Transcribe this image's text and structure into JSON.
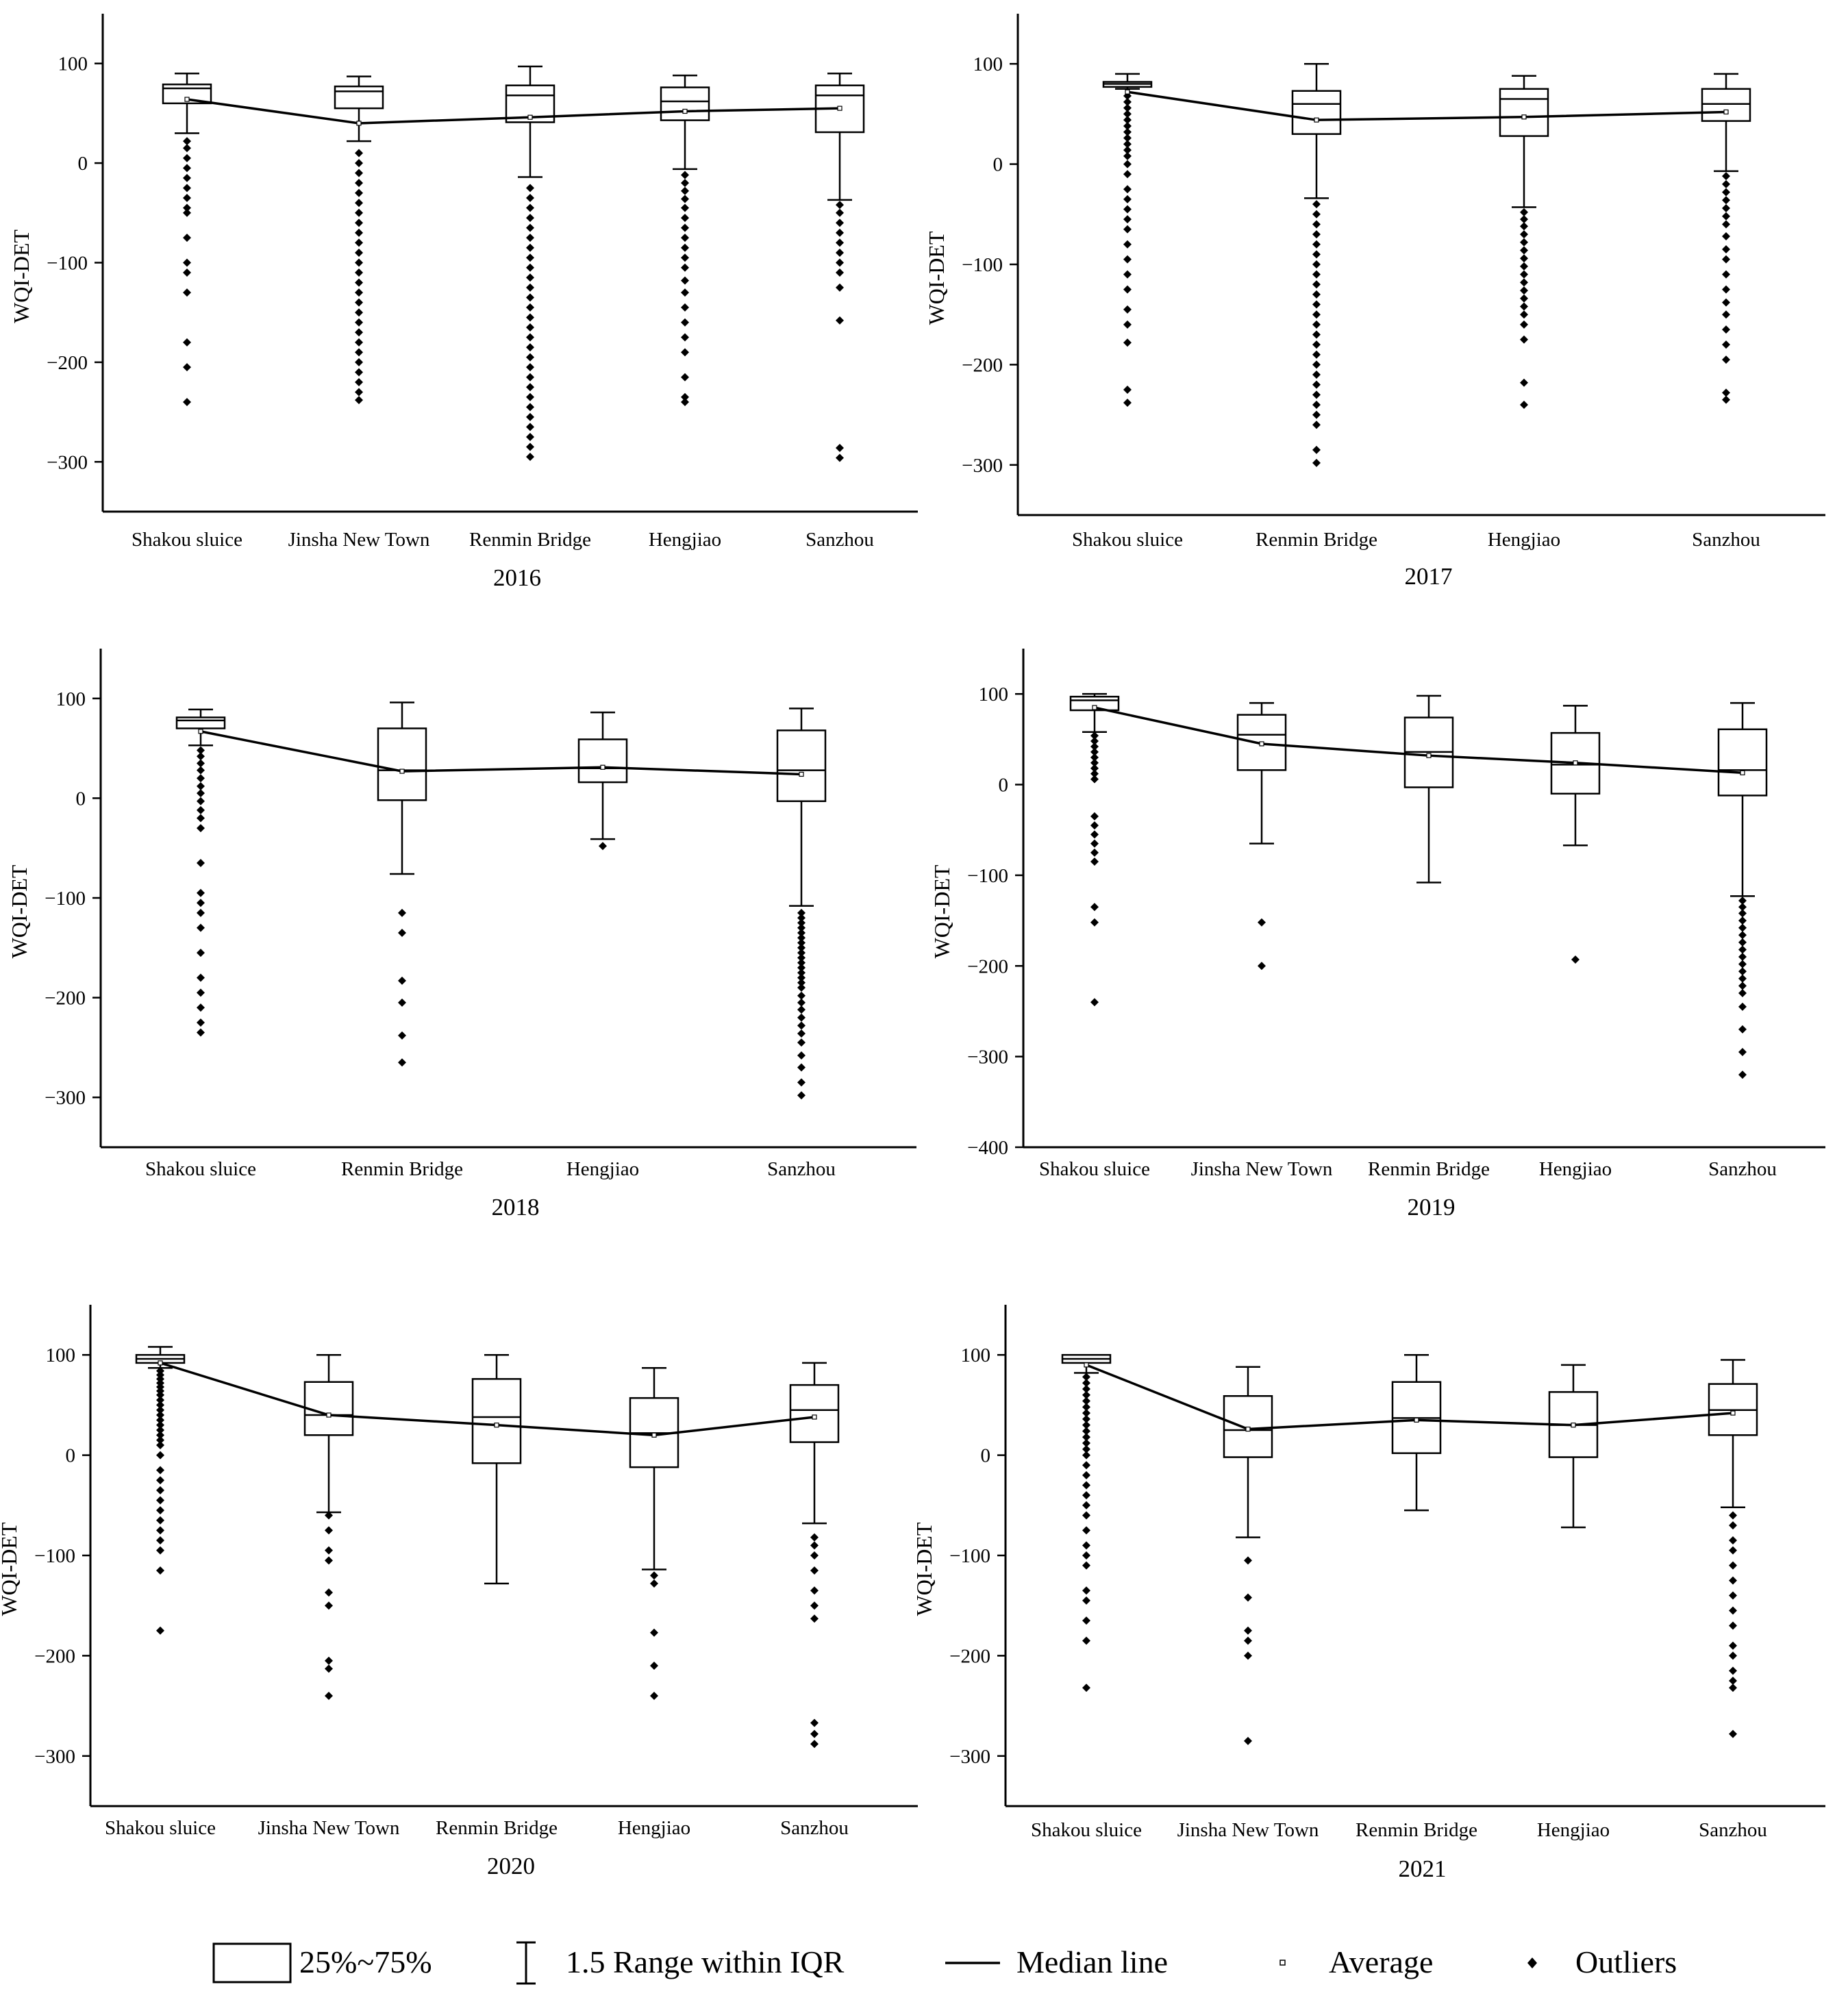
{
  "legend": {
    "box": "25%~75%",
    "whisker": "1.5 Range within IQR",
    "median": "Median line",
    "average": "Average",
    "outliers": "Outliers"
  },
  "chart_data": [
    {
      "type": "box",
      "title": "2016",
      "ylabel": "WQI-DET",
      "ylim": [
        -350,
        150
      ],
      "yticks": [
        100,
        0,
        -100,
        -200,
        -300
      ],
      "categories": [
        "Shakou sluice",
        "Jinsha New Town",
        "Renmin Bridge",
        "Hengjiao",
        "Sanzhou"
      ],
      "boxes": [
        {
          "q1": 60,
          "median": 75,
          "q3": 79,
          "whislo": 30,
          "whishi": 90,
          "mean": 64,
          "outliers": [
            22,
            15,
            5,
            -5,
            -15,
            -25,
            -35,
            -45,
            -50,
            -75,
            -100,
            -110,
            -130,
            -180,
            -205,
            -240
          ]
        },
        {
          "q1": 55,
          "median": 72,
          "q3": 77,
          "whislo": 22,
          "whishi": 87,
          "mean": 40,
          "outliers": [
            10,
            0,
            -10,
            -20,
            -30,
            -40,
            -50,
            -60,
            -70,
            -80,
            -90,
            -100,
            -110,
            -120,
            -130,
            -140,
            -150,
            -160,
            -170,
            -180,
            -190,
            -200,
            -210,
            -220,
            -230,
            -238
          ]
        },
        {
          "q1": 41,
          "median": 68,
          "q3": 78,
          "whislo": -14,
          "whishi": 97,
          "mean": 46,
          "outliers": [
            -25,
            -35,
            -45,
            -55,
            -65,
            -75,
            -85,
            -95,
            -105,
            -115,
            -125,
            -135,
            -145,
            -155,
            -165,
            -175,
            -185,
            -195,
            -205,
            -215,
            -225,
            -235,
            -245,
            -255,
            -265,
            -275,
            -285,
            -295
          ]
        },
        {
          "q1": 43,
          "median": 62,
          "q3": 76,
          "whislo": -6,
          "whishi": 88,
          "mean": 52,
          "outliers": [
            -12,
            -20,
            -28,
            -36,
            -45,
            -55,
            -65,
            -75,
            -85,
            -95,
            -105,
            -118,
            -130,
            -145,
            -160,
            -175,
            -190,
            -215,
            -235,
            -240
          ]
        },
        {
          "q1": 31,
          "median": 68,
          "q3": 78,
          "whislo": -37,
          "whishi": 90,
          "mean": 55,
          "outliers": [
            -42,
            -50,
            -60,
            -70,
            -80,
            -90,
            -100,
            -110,
            -125,
            -158,
            -286,
            -296
          ]
        }
      ]
    },
    {
      "type": "box",
      "title": "2017",
      "ylabel": "WQI-DET",
      "ylim": [
        -350,
        150
      ],
      "yticks": [
        100,
        0,
        -100,
        -200,
        -300
      ],
      "categories": [
        "Shakou sluice",
        "Renmin Bridge",
        "Hengjiao",
        "Sanzhou"
      ],
      "boxes": [
        {
          "q1": 77,
          "median": 80,
          "q3": 82,
          "whislo": 75,
          "whishi": 90,
          "mean": 72,
          "outliers": [
            68,
            62,
            56,
            50,
            44,
            38,
            32,
            26,
            20,
            14,
            8,
            0,
            -10,
            -25,
            -35,
            -45,
            -55,
            -65,
            -80,
            -95,
            -110,
            -125,
            -145,
            -160,
            -178,
            -225,
            -238
          ]
        },
        {
          "q1": 30,
          "median": 60,
          "q3": 73,
          "whislo": -34,
          "whishi": 100,
          "mean": 44,
          "outliers": [
            -40,
            -50,
            -60,
            -70,
            -80,
            -90,
            -100,
            -110,
            -120,
            -130,
            -140,
            -150,
            -160,
            -170,
            -180,
            -190,
            -200,
            -210,
            -220,
            -230,
            -240,
            -250,
            -260,
            -285,
            -298
          ]
        },
        {
          "q1": 28,
          "median": 65,
          "q3": 75,
          "whislo": -43,
          "whishi": 88,
          "mean": 47,
          "outliers": [
            -48,
            -55,
            -62,
            -70,
            -78,
            -86,
            -94,
            -102,
            -110,
            -118,
            -126,
            -134,
            -142,
            -150,
            -160,
            -175,
            -218,
            -240
          ]
        },
        {
          "q1": 43,
          "median": 60,
          "q3": 75,
          "whislo": -7,
          "whishi": 90,
          "mean": 52,
          "outliers": [
            -12,
            -20,
            -28,
            -36,
            -44,
            -52,
            -60,
            -72,
            -85,
            -95,
            -110,
            -125,
            -138,
            -150,
            -165,
            -180,
            -195,
            -228,
            -235
          ]
        }
      ]
    },
    {
      "type": "box",
      "title": "2018",
      "ylabel": "WQI-DET",
      "ylim": [
        -350,
        150
      ],
      "yticks": [
        100,
        0,
        -100,
        -200,
        -300
      ],
      "categories": [
        "Shakou sluice",
        "Renmin Bridge",
        "Hengjiao",
        "Sanzhou"
      ],
      "boxes": [
        {
          "q1": 70,
          "median": 78,
          "q3": 81,
          "whislo": 53,
          "whishi": 89,
          "mean": 67,
          "outliers": [
            48,
            42,
            35,
            28,
            20,
            12,
            5,
            -3,
            -12,
            -20,
            -30,
            -65,
            -95,
            -105,
            -115,
            -130,
            -155,
            -180,
            -195,
            -210,
            -225,
            -235
          ]
        },
        {
          "q1": -2,
          "median": 28,
          "q3": 70,
          "whislo": -76,
          "whishi": 96,
          "mean": 27,
          "outliers": [
            -115,
            -135,
            -183,
            -205,
            -238,
            -265
          ]
        },
        {
          "q1": 16,
          "median": 30,
          "q3": 59,
          "whislo": -41,
          "whishi": 86,
          "mean": 31,
          "outliers": [
            -48
          ]
        },
        {
          "q1": -3,
          "median": 28,
          "q3": 68,
          "whislo": -108,
          "whishi": 90,
          "mean": 24,
          "outliers": [
            -115,
            -120,
            -125,
            -130,
            -135,
            -140,
            -145,
            -150,
            -155,
            -160,
            -165,
            -170,
            -175,
            -180,
            -185,
            -190,
            -198,
            -205,
            -212,
            -220,
            -228,
            -236,
            -245,
            -258,
            -270,
            -285,
            -298
          ]
        }
      ]
    },
    {
      "type": "box",
      "title": "2019",
      "ylabel": "WQI-DET",
      "ylim": [
        -400,
        150
      ],
      "yticks": [
        100,
        0,
        -100,
        -200,
        -300,
        -400
      ],
      "categories": [
        "Shakou sluice",
        "Jinsha New Town",
        "Renmin Bridge",
        "Hengjiao",
        "Sanzhou"
      ],
      "boxes": [
        {
          "q1": 82,
          "median": 93,
          "q3": 97,
          "whislo": 58,
          "whishi": 100,
          "mean": 85,
          "outliers": [
            54,
            48,
            42,
            36,
            30,
            24,
            18,
            12,
            6,
            -35,
            -45,
            -55,
            -65,
            -75,
            -85,
            -135,
            -152,
            -240
          ]
        },
        {
          "q1": 16,
          "median": 55,
          "q3": 77,
          "whislo": -65,
          "whishi": 90,
          "mean": 45,
          "outliers": [
            -152,
            -200
          ]
        },
        {
          "q1": -3,
          "median": 36,
          "q3": 74,
          "whislo": -108,
          "whishi": 98,
          "mean": 32,
          "outliers": []
        },
        {
          "q1": -10,
          "median": 22,
          "q3": 57,
          "whislo": -67,
          "whishi": 87,
          "mean": 24,
          "outliers": [
            -193
          ]
        },
        {
          "q1": -12,
          "median": 16,
          "q3": 61,
          "whislo": -123,
          "whishi": 90,
          "mean": 13,
          "outliers": [
            -128,
            -135,
            -142,
            -150,
            -158,
            -166,
            -174,
            -182,
            -190,
            -198,
            -206,
            -214,
            -222,
            -230,
            -245,
            -270,
            -295,
            -320
          ]
        }
      ]
    },
    {
      "type": "box",
      "title": "2020",
      "ylabel": "WQI-DET",
      "ylim": [
        -350,
        150
      ],
      "yticks": [
        100,
        0,
        -100,
        -200,
        -300
      ],
      "categories": [
        "Shakou sluice",
        "Jinsha New Town",
        "Renmin Bridge",
        "Hengjiao",
        "Sanzhou"
      ],
      "boxes": [
        {
          "q1": 92,
          "median": 96,
          "q3": 100,
          "whislo": 87,
          "whishi": 108,
          "mean": 92,
          "outliers": [
            84,
            80,
            76,
            72,
            68,
            64,
            60,
            55,
            50,
            45,
            40,
            35,
            30,
            25,
            20,
            15,
            10,
            0,
            -15,
            -25,
            -35,
            -45,
            -55,
            -65,
            -75,
            -85,
            -95,
            -115,
            -175
          ]
        },
        {
          "q1": 20,
          "median": 40,
          "q3": 73,
          "whislo": -57,
          "whishi": 100,
          "mean": 40,
          "outliers": [
            -60,
            -75,
            -95,
            -105,
            -137,
            -150,
            -205,
            -213,
            -240
          ]
        },
        {
          "q1": -8,
          "median": 38,
          "q3": 76,
          "whislo": -128,
          "whishi": 100,
          "mean": 30,
          "outliers": []
        },
        {
          "q1": -12,
          "median": 22,
          "q3": 57,
          "whislo": -114,
          "whishi": 87,
          "mean": 20,
          "outliers": [
            -120,
            -128,
            -177,
            -210,
            -240
          ]
        },
        {
          "q1": 13,
          "median": 45,
          "q3": 70,
          "whislo": -68,
          "whishi": 92,
          "mean": 38,
          "outliers": [
            -82,
            -90,
            -100,
            -115,
            -135,
            -150,
            -163,
            -267,
            -278,
            -288
          ]
        }
      ]
    },
    {
      "type": "box",
      "title": "2021",
      "ylabel": "WQI-DET",
      "ylim": [
        -350,
        150
      ],
      "yticks": [
        100,
        0,
        -100,
        -200,
        -300
      ],
      "categories": [
        "Shakou sluice",
        "Jinsha New Town",
        "Renmin Bridge",
        "Hengjiao",
        "Sanzhou"
      ],
      "boxes": [
        {
          "q1": 92,
          "median": 96,
          "q3": 100,
          "whislo": 82,
          "whishi": 100,
          "mean": 90,
          "outliers": [
            78,
            72,
            66,
            60,
            54,
            48,
            42,
            36,
            30,
            24,
            18,
            12,
            6,
            0,
            -10,
            -20,
            -30,
            -40,
            -50,
            -60,
            -75,
            -90,
            -100,
            -110,
            -135,
            -145,
            -165,
            -185,
            -232
          ]
        },
        {
          "q1": -2,
          "median": 25,
          "q3": 59,
          "whislo": -82,
          "whishi": 88,
          "mean": 26,
          "outliers": [
            -105,
            -142,
            -175,
            -185,
            -200,
            -285
          ]
        },
        {
          "q1": 2,
          "median": 37,
          "q3": 73,
          "whislo": -55,
          "whishi": 100,
          "mean": 35,
          "outliers": []
        },
        {
          "q1": -2,
          "median": 30,
          "q3": 63,
          "whislo": -72,
          "whishi": 90,
          "mean": 30,
          "outliers": []
        },
        {
          "q1": 20,
          "median": 45,
          "q3": 71,
          "whislo": -52,
          "whishi": 95,
          "mean": 42,
          "outliers": [
            -60,
            -70,
            -85,
            -95,
            -110,
            -125,
            -140,
            -155,
            -170,
            -190,
            -200,
            -215,
            -225,
            -232,
            -278
          ]
        }
      ]
    }
  ]
}
